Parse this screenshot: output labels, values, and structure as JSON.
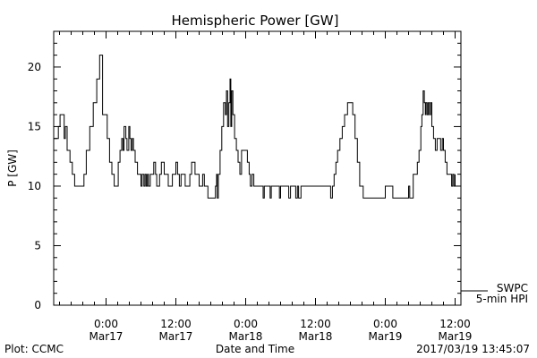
{
  "chart_data": {
    "type": "line",
    "title": "Hemispheric Power [GW]",
    "xlabel": "Date and Time",
    "ylabel": "P [GW]",
    "ylim": [
      0,
      23
    ],
    "yticks": [
      0,
      5,
      10,
      15,
      20
    ],
    "xlim_hours": [
      -4.5,
      30.5
    ],
    "xticks": [
      {
        "h": 0,
        "time": "0:00",
        "date": "Mar17"
      },
      {
        "h": 6,
        "time": "12:00",
        "date": "Mar17"
      },
      {
        "h": 12,
        "time": "0:00",
        "date": "Mar18"
      },
      {
        "h": 18,
        "time": "12:00",
        "date": "Mar18"
      },
      {
        "h": 24,
        "time": "0:00",
        "date": "Mar19"
      },
      {
        "h": 30,
        "time": "12:00",
        "date": "Mar19"
      }
    ],
    "legend": {
      "source": "SWPC",
      "description": "5-min HPI",
      "placement": "right"
    },
    "footer": {
      "left": "Plot: CCMC",
      "right": "2017/03/19 13:45:07"
    },
    "series": [
      {
        "name": "SWPC",
        "points": [
          [
            -4.5,
            14
          ],
          [
            -4.3,
            14
          ],
          [
            -4.1,
            15
          ],
          [
            -3.95,
            16
          ],
          [
            -3.75,
            16
          ],
          [
            -3.6,
            14
          ],
          [
            -3.5,
            15
          ],
          [
            -3.35,
            13
          ],
          [
            -3.1,
            12
          ],
          [
            -2.9,
            11
          ],
          [
            -2.7,
            10
          ],
          [
            -2.2,
            10
          ],
          [
            -1.9,
            11
          ],
          [
            -1.7,
            13
          ],
          [
            -1.4,
            15
          ],
          [
            -1.1,
            17
          ],
          [
            -0.8,
            19
          ],
          [
            -0.55,
            21
          ],
          [
            -0.4,
            21
          ],
          [
            -0.3,
            16
          ],
          [
            -0.1,
            16
          ],
          [
            0.1,
            14
          ],
          [
            0.3,
            12
          ],
          [
            0.5,
            11
          ],
          [
            0.7,
            10
          ],
          [
            0.9,
            10
          ],
          [
            1.05,
            12
          ],
          [
            1.2,
            13
          ],
          [
            1.35,
            14
          ],
          [
            1.45,
            13
          ],
          [
            1.55,
            15
          ],
          [
            1.7,
            14
          ],
          [
            1.8,
            13
          ],
          [
            1.95,
            15
          ],
          [
            2.05,
            14
          ],
          [
            2.15,
            13
          ],
          [
            2.25,
            14
          ],
          [
            2.35,
            13
          ],
          [
            2.5,
            12
          ],
          [
            2.7,
            11
          ],
          [
            2.85,
            11
          ],
          [
            3.0,
            10
          ],
          [
            3.1,
            11
          ],
          [
            3.25,
            10
          ],
          [
            3.35,
            11
          ],
          [
            3.45,
            10
          ],
          [
            3.55,
            11
          ],
          [
            3.65,
            10
          ],
          [
            3.8,
            11
          ],
          [
            4.0,
            11
          ],
          [
            4.1,
            12
          ],
          [
            4.25,
            11
          ],
          [
            4.35,
            10
          ],
          [
            4.5,
            10
          ],
          [
            4.6,
            11
          ],
          [
            4.75,
            12
          ],
          [
            4.9,
            12
          ],
          [
            5.0,
            11
          ],
          [
            5.2,
            11
          ],
          [
            5.35,
            10
          ],
          [
            5.5,
            10
          ],
          [
            5.7,
            11
          ],
          [
            5.9,
            11
          ],
          [
            6.0,
            12
          ],
          [
            6.15,
            11
          ],
          [
            6.3,
            10
          ],
          [
            6.45,
            11
          ],
          [
            6.6,
            11
          ],
          [
            6.8,
            10
          ],
          [
            7.0,
            10
          ],
          [
            7.2,
            11
          ],
          [
            7.35,
            12
          ],
          [
            7.5,
            12
          ],
          [
            7.65,
            11
          ],
          [
            7.8,
            11
          ],
          [
            8.0,
            10
          ],
          [
            8.15,
            10
          ],
          [
            8.3,
            11
          ],
          [
            8.45,
            10
          ],
          [
            8.6,
            10
          ],
          [
            8.75,
            9
          ],
          [
            9.3,
            9
          ],
          [
            9.4,
            10
          ],
          [
            9.5,
            11
          ],
          [
            9.55,
            9
          ],
          [
            9.65,
            11
          ],
          [
            9.8,
            13
          ],
          [
            9.95,
            15
          ],
          [
            10.1,
            17
          ],
          [
            10.25,
            16
          ],
          [
            10.35,
            18
          ],
          [
            10.45,
            15
          ],
          [
            10.55,
            17
          ],
          [
            10.65,
            19
          ],
          [
            10.72,
            15
          ],
          [
            10.8,
            18
          ],
          [
            10.9,
            16
          ],
          [
            11.05,
            14
          ],
          [
            11.2,
            13
          ],
          [
            11.35,
            12
          ],
          [
            11.5,
            11
          ],
          [
            11.65,
            13
          ],
          [
            11.8,
            13
          ],
          [
            12.0,
            13
          ],
          [
            12.15,
            12
          ],
          [
            12.3,
            11
          ],
          [
            12.4,
            10
          ],
          [
            12.55,
            11
          ],
          [
            12.7,
            10
          ],
          [
            13.0,
            10
          ],
          [
            13.4,
            10
          ],
          [
            13.5,
            9
          ],
          [
            13.6,
            10
          ],
          [
            14.0,
            10
          ],
          [
            14.1,
            9
          ],
          [
            14.2,
            10
          ],
          [
            14.8,
            10
          ],
          [
            14.9,
            9
          ],
          [
            15.0,
            10
          ],
          [
            15.6,
            10
          ],
          [
            15.7,
            9
          ],
          [
            15.85,
            10
          ],
          [
            16.25,
            10
          ],
          [
            16.3,
            9
          ],
          [
            16.45,
            10
          ],
          [
            16.55,
            9
          ],
          [
            16.75,
            10
          ],
          [
            17.0,
            10
          ],
          [
            17.8,
            10
          ],
          [
            18.6,
            10
          ],
          [
            19.0,
            10
          ],
          [
            19.3,
            9
          ],
          [
            19.45,
            10
          ],
          [
            19.6,
            11
          ],
          [
            19.75,
            12
          ],
          [
            19.9,
            13
          ],
          [
            20.1,
            14
          ],
          [
            20.3,
            15
          ],
          [
            20.5,
            16
          ],
          [
            20.75,
            17
          ],
          [
            21.0,
            17
          ],
          [
            21.2,
            16
          ],
          [
            21.4,
            14
          ],
          [
            21.6,
            12
          ],
          [
            21.8,
            10
          ],
          [
            21.95,
            10
          ],
          [
            22.1,
            9
          ],
          [
            22.3,
            9
          ],
          [
            22.8,
            9
          ],
          [
            23.4,
            9
          ],
          [
            23.8,
            9
          ],
          [
            24.0,
            10
          ],
          [
            24.5,
            10
          ],
          [
            24.65,
            9
          ],
          [
            25.3,
            9
          ],
          [
            25.8,
            9
          ],
          [
            26.0,
            10
          ],
          [
            26.1,
            9
          ],
          [
            26.3,
            9
          ],
          [
            26.4,
            11
          ],
          [
            26.6,
            11
          ],
          [
            26.75,
            12
          ],
          [
            26.9,
            13
          ],
          [
            27.05,
            15
          ],
          [
            27.15,
            16
          ],
          [
            27.25,
            18
          ],
          [
            27.35,
            17
          ],
          [
            27.45,
            16
          ],
          [
            27.5,
            17
          ],
          [
            27.6,
            16
          ],
          [
            27.7,
            17
          ],
          [
            27.8,
            16
          ],
          [
            27.9,
            17
          ],
          [
            28.0,
            15
          ],
          [
            28.15,
            14
          ],
          [
            28.3,
            13
          ],
          [
            28.45,
            14
          ],
          [
            28.6,
            14
          ],
          [
            28.75,
            13
          ],
          [
            28.9,
            14
          ],
          [
            29.0,
            13
          ],
          [
            29.15,
            12
          ],
          [
            29.3,
            11
          ],
          [
            29.6,
            11
          ],
          [
            29.7,
            10
          ],
          [
            29.8,
            11
          ],
          [
            29.9,
            10
          ],
          [
            30.0,
            11
          ]
        ]
      }
    ]
  }
}
